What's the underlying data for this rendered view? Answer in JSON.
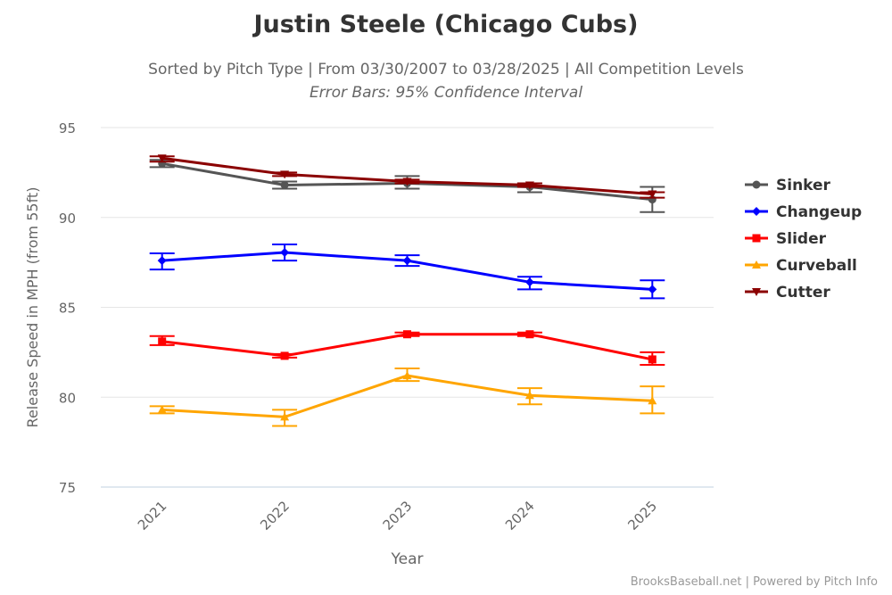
{
  "chart_data": {
    "type": "line",
    "title": "Justin Steele (Chicago Cubs)",
    "subtitle": "Sorted by Pitch Type | From 03/30/2007 to 03/28/2025 | All Competition Levels",
    "subtitle2": "Error Bars: 95% Confidence Interval",
    "xlabel": "Year",
    "ylabel": "Release Speed in MPH (from 55ft)",
    "categories": [
      "2021",
      "2022",
      "2023",
      "2024",
      "2025"
    ],
    "ylim": [
      75,
      95
    ],
    "yticks": [
      "75",
      "80",
      "85",
      "90",
      "95"
    ],
    "grid": true,
    "legend_position": "right",
    "series": [
      {
        "name": "Sinker",
        "color": "#555555",
        "marker": "circle",
        "values": [
          93.0,
          91.8,
          91.9,
          91.7,
          91.0
        ],
        "ci": [
          [
            92.8,
            93.2
          ],
          [
            91.6,
            92.0
          ],
          [
            91.6,
            92.3
          ],
          [
            91.4,
            91.9
          ],
          [
            90.3,
            91.7
          ]
        ]
      },
      {
        "name": "Changeup",
        "color": "#0000ff",
        "marker": "diamond",
        "values": [
          87.6,
          88.05,
          87.6,
          86.4,
          86.0
        ],
        "ci": [
          [
            87.1,
            88.0
          ],
          [
            87.6,
            88.5
          ],
          [
            87.3,
            87.9
          ],
          [
            86.0,
            86.7
          ],
          [
            85.5,
            86.5
          ]
        ]
      },
      {
        "name": "Slider",
        "color": "#ff0000",
        "marker": "square",
        "values": [
          83.1,
          82.3,
          83.5,
          83.5,
          82.1
        ],
        "ci": [
          [
            82.9,
            83.4
          ],
          [
            82.2,
            82.4
          ],
          [
            83.4,
            83.6
          ],
          [
            83.4,
            83.6
          ],
          [
            81.8,
            82.5
          ]
        ]
      },
      {
        "name": "Curveball",
        "color": "#ffa500",
        "marker": "triangle",
        "values": [
          79.3,
          78.9,
          81.2,
          80.1,
          79.8
        ],
        "ci": [
          [
            79.1,
            79.5
          ],
          [
            78.4,
            79.3
          ],
          [
            80.9,
            81.6
          ],
          [
            79.6,
            80.5
          ],
          [
            79.1,
            80.6
          ]
        ]
      },
      {
        "name": "Cutter",
        "color": "#8b0000",
        "marker": "triangle-down",
        "values": [
          93.3,
          92.4,
          92.0,
          91.8,
          91.3
        ],
        "ci": [
          [
            93.1,
            93.4
          ],
          [
            92.3,
            92.5
          ],
          [
            91.9,
            92.1
          ],
          [
            91.7,
            91.9
          ],
          [
            91.1,
            91.4
          ]
        ]
      }
    ]
  },
  "credit": "BrooksBaseball.net | Powered by Pitch Info"
}
